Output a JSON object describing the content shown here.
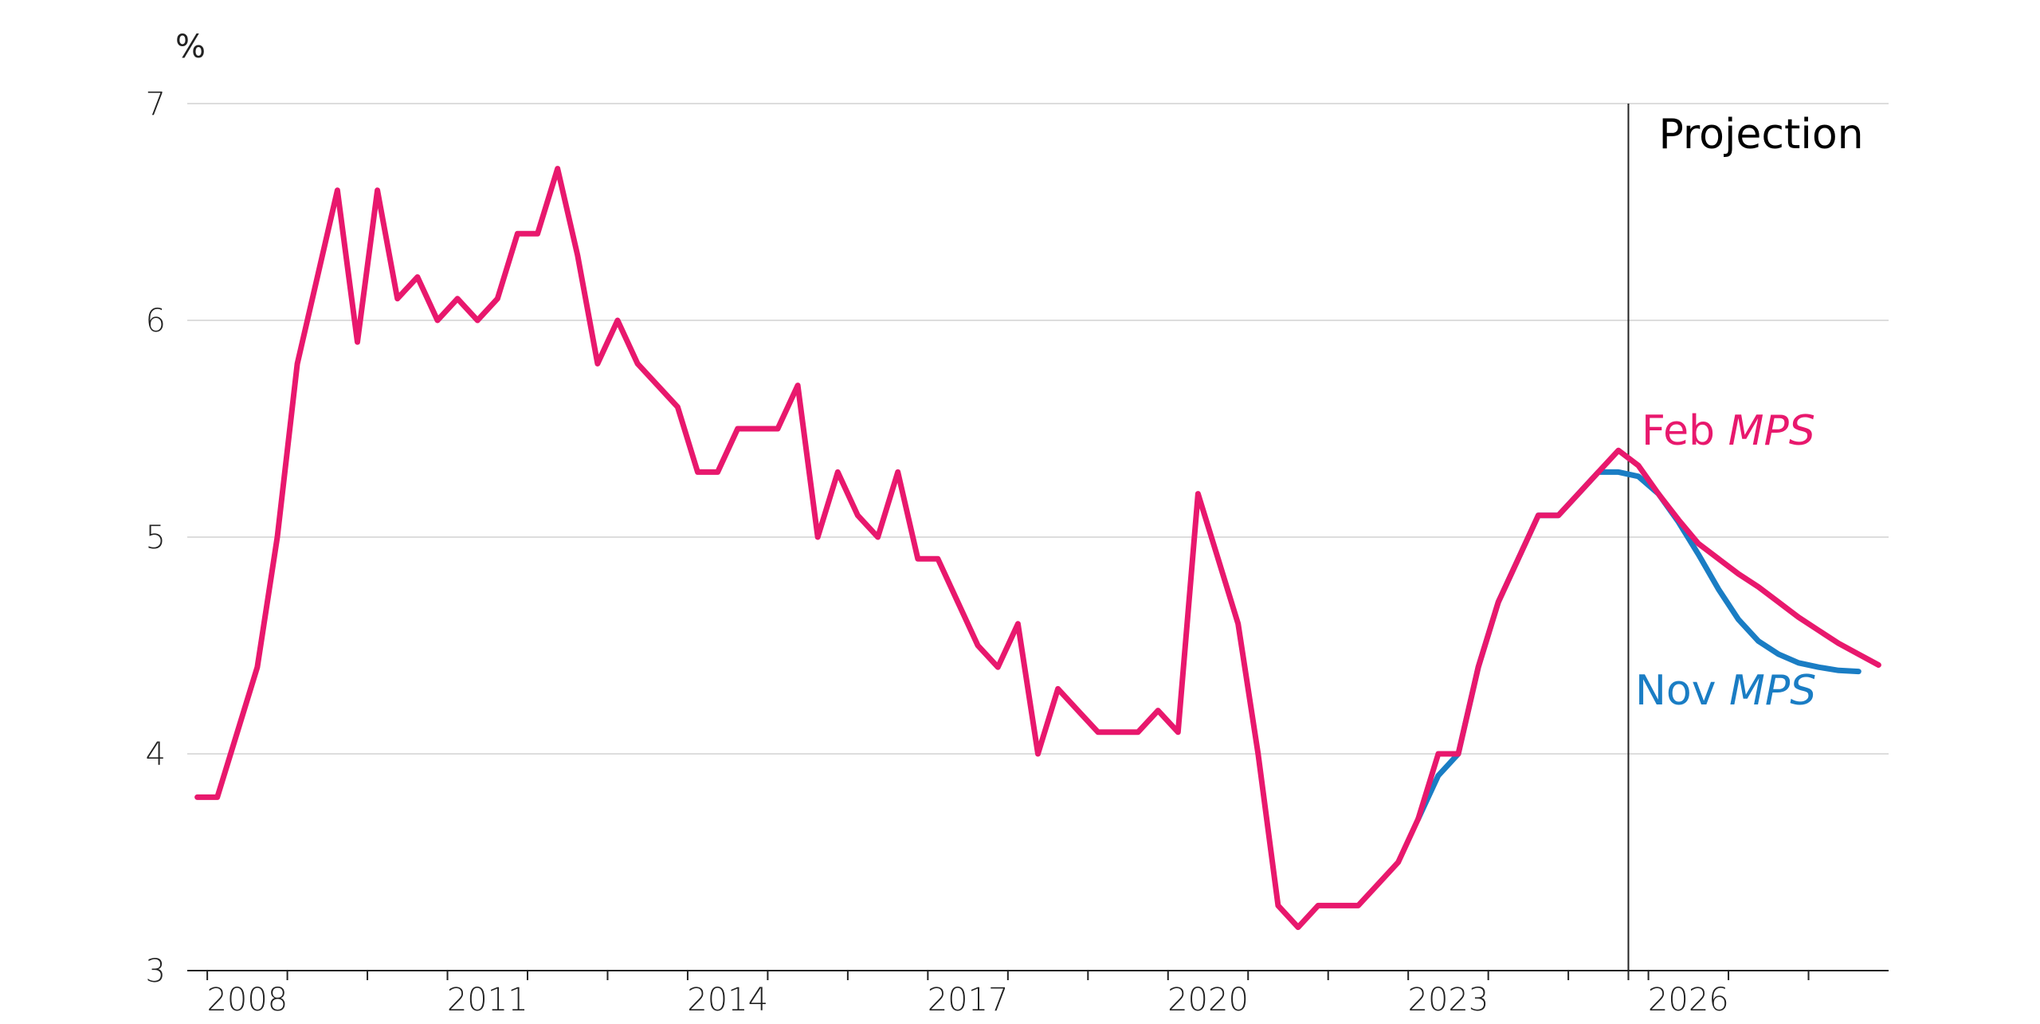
{
  "chart_data": {
    "type": "line",
    "title": "",
    "xlabel": "",
    "ylabel": "%",
    "ylim": [
      3,
      7
    ],
    "xlim": [
      2007.75,
      2029.0
    ],
    "y_ticks": [
      "3",
      "4",
      "5",
      "6",
      "7"
    ],
    "x_tick_labels": [
      "2008",
      "2011",
      "2014",
      "2017",
      "2020",
      "2023",
      "2026"
    ],
    "grid": true,
    "projection_label": "Projection",
    "projection_start": 2025.75,
    "series": [
      {
        "name": "Feb MPS",
        "label_prefix": "Feb ",
        "label_italic": "MPS",
        "color": "#e8186d",
        "x": [
          2007.875,
          2008.125,
          2008.375,
          2008.625,
          2008.875,
          2009.125,
          2009.375,
          2009.625,
          2009.875,
          2010.125,
          2010.375,
          2010.625,
          2010.875,
          2011.125,
          2011.375,
          2011.625,
          2011.875,
          2012.125,
          2012.375,
          2012.625,
          2012.875,
          2013.125,
          2013.375,
          2013.625,
          2013.875,
          2014.125,
          2014.375,
          2014.625,
          2014.875,
          2015.125,
          2015.375,
          2015.625,
          2015.875,
          2016.125,
          2016.375,
          2016.625,
          2016.875,
          2017.125,
          2017.375,
          2017.625,
          2017.875,
          2018.125,
          2018.375,
          2018.625,
          2018.875,
          2019.125,
          2019.375,
          2019.625,
          2019.875,
          2020.125,
          2020.375,
          2020.625,
          2020.875,
          2021.125,
          2021.375,
          2021.625,
          2021.875,
          2022.125,
          2022.375,
          2022.625,
          2022.875,
          2023.125,
          2023.375,
          2023.625,
          2023.875,
          2024.125,
          2024.375,
          2024.625,
          2024.875,
          2025.125,
          2025.375,
          2025.625,
          2025.875,
          2026.125,
          2026.375,
          2026.625,
          2026.875,
          2027.125,
          2027.375,
          2027.625,
          2027.875,
          2028.125,
          2028.375,
          2028.625,
          2028.875
        ],
        "values": [
          3.8,
          3.8,
          4.1,
          4.4,
          5.0,
          5.8,
          6.2,
          6.6,
          5.9,
          6.6,
          6.1,
          6.2,
          6.0,
          6.1,
          6.0,
          6.1,
          6.4,
          6.4,
          6.7,
          6.3,
          5.8,
          6.0,
          5.8,
          5.7,
          5.6,
          5.3,
          5.3,
          5.5,
          5.5,
          5.5,
          5.7,
          5.0,
          5.3,
          5.1,
          5.0,
          5.3,
          4.9,
          4.9,
          4.7,
          4.5,
          4.4,
          4.6,
          4.0,
          4.3,
          4.2,
          4.1,
          4.1,
          4.1,
          4.2,
          4.1,
          5.2,
          4.9,
          4.6,
          4.0,
          3.3,
          3.2,
          3.3,
          3.3,
          3.3,
          3.4,
          3.5,
          3.7,
          4.0,
          4.0,
          4.4,
          4.7,
          4.9,
          5.1,
          5.1,
          5.2,
          5.3,
          5.4,
          5.33,
          5.2,
          5.08,
          4.97,
          4.9,
          4.83,
          4.77,
          4.7,
          4.63,
          4.57,
          4.51,
          4.46,
          4.41
        ]
      },
      {
        "name": "Nov MPS",
        "label_prefix": "Nov ",
        "label_italic": "MPS",
        "color": "#1a7dc4",
        "x": [
          2023.125,
          2023.375,
          2023.625,
          2023.875,
          2024.125,
          2024.375,
          2024.625,
          2024.875,
          2025.125,
          2025.375,
          2025.625,
          2025.875,
          2026.125,
          2026.375,
          2026.625,
          2026.875,
          2027.125,
          2027.375,
          2027.625,
          2027.875,
          2028.125,
          2028.375,
          2028.625
        ],
        "values": [
          3.7,
          3.9,
          4.0,
          4.4,
          4.7,
          4.9,
          5.1,
          5.1,
          5.2,
          5.3,
          5.3,
          5.28,
          5.2,
          5.07,
          4.92,
          4.76,
          4.62,
          4.52,
          4.46,
          4.42,
          4.4,
          4.385,
          4.38
        ]
      }
    ]
  }
}
